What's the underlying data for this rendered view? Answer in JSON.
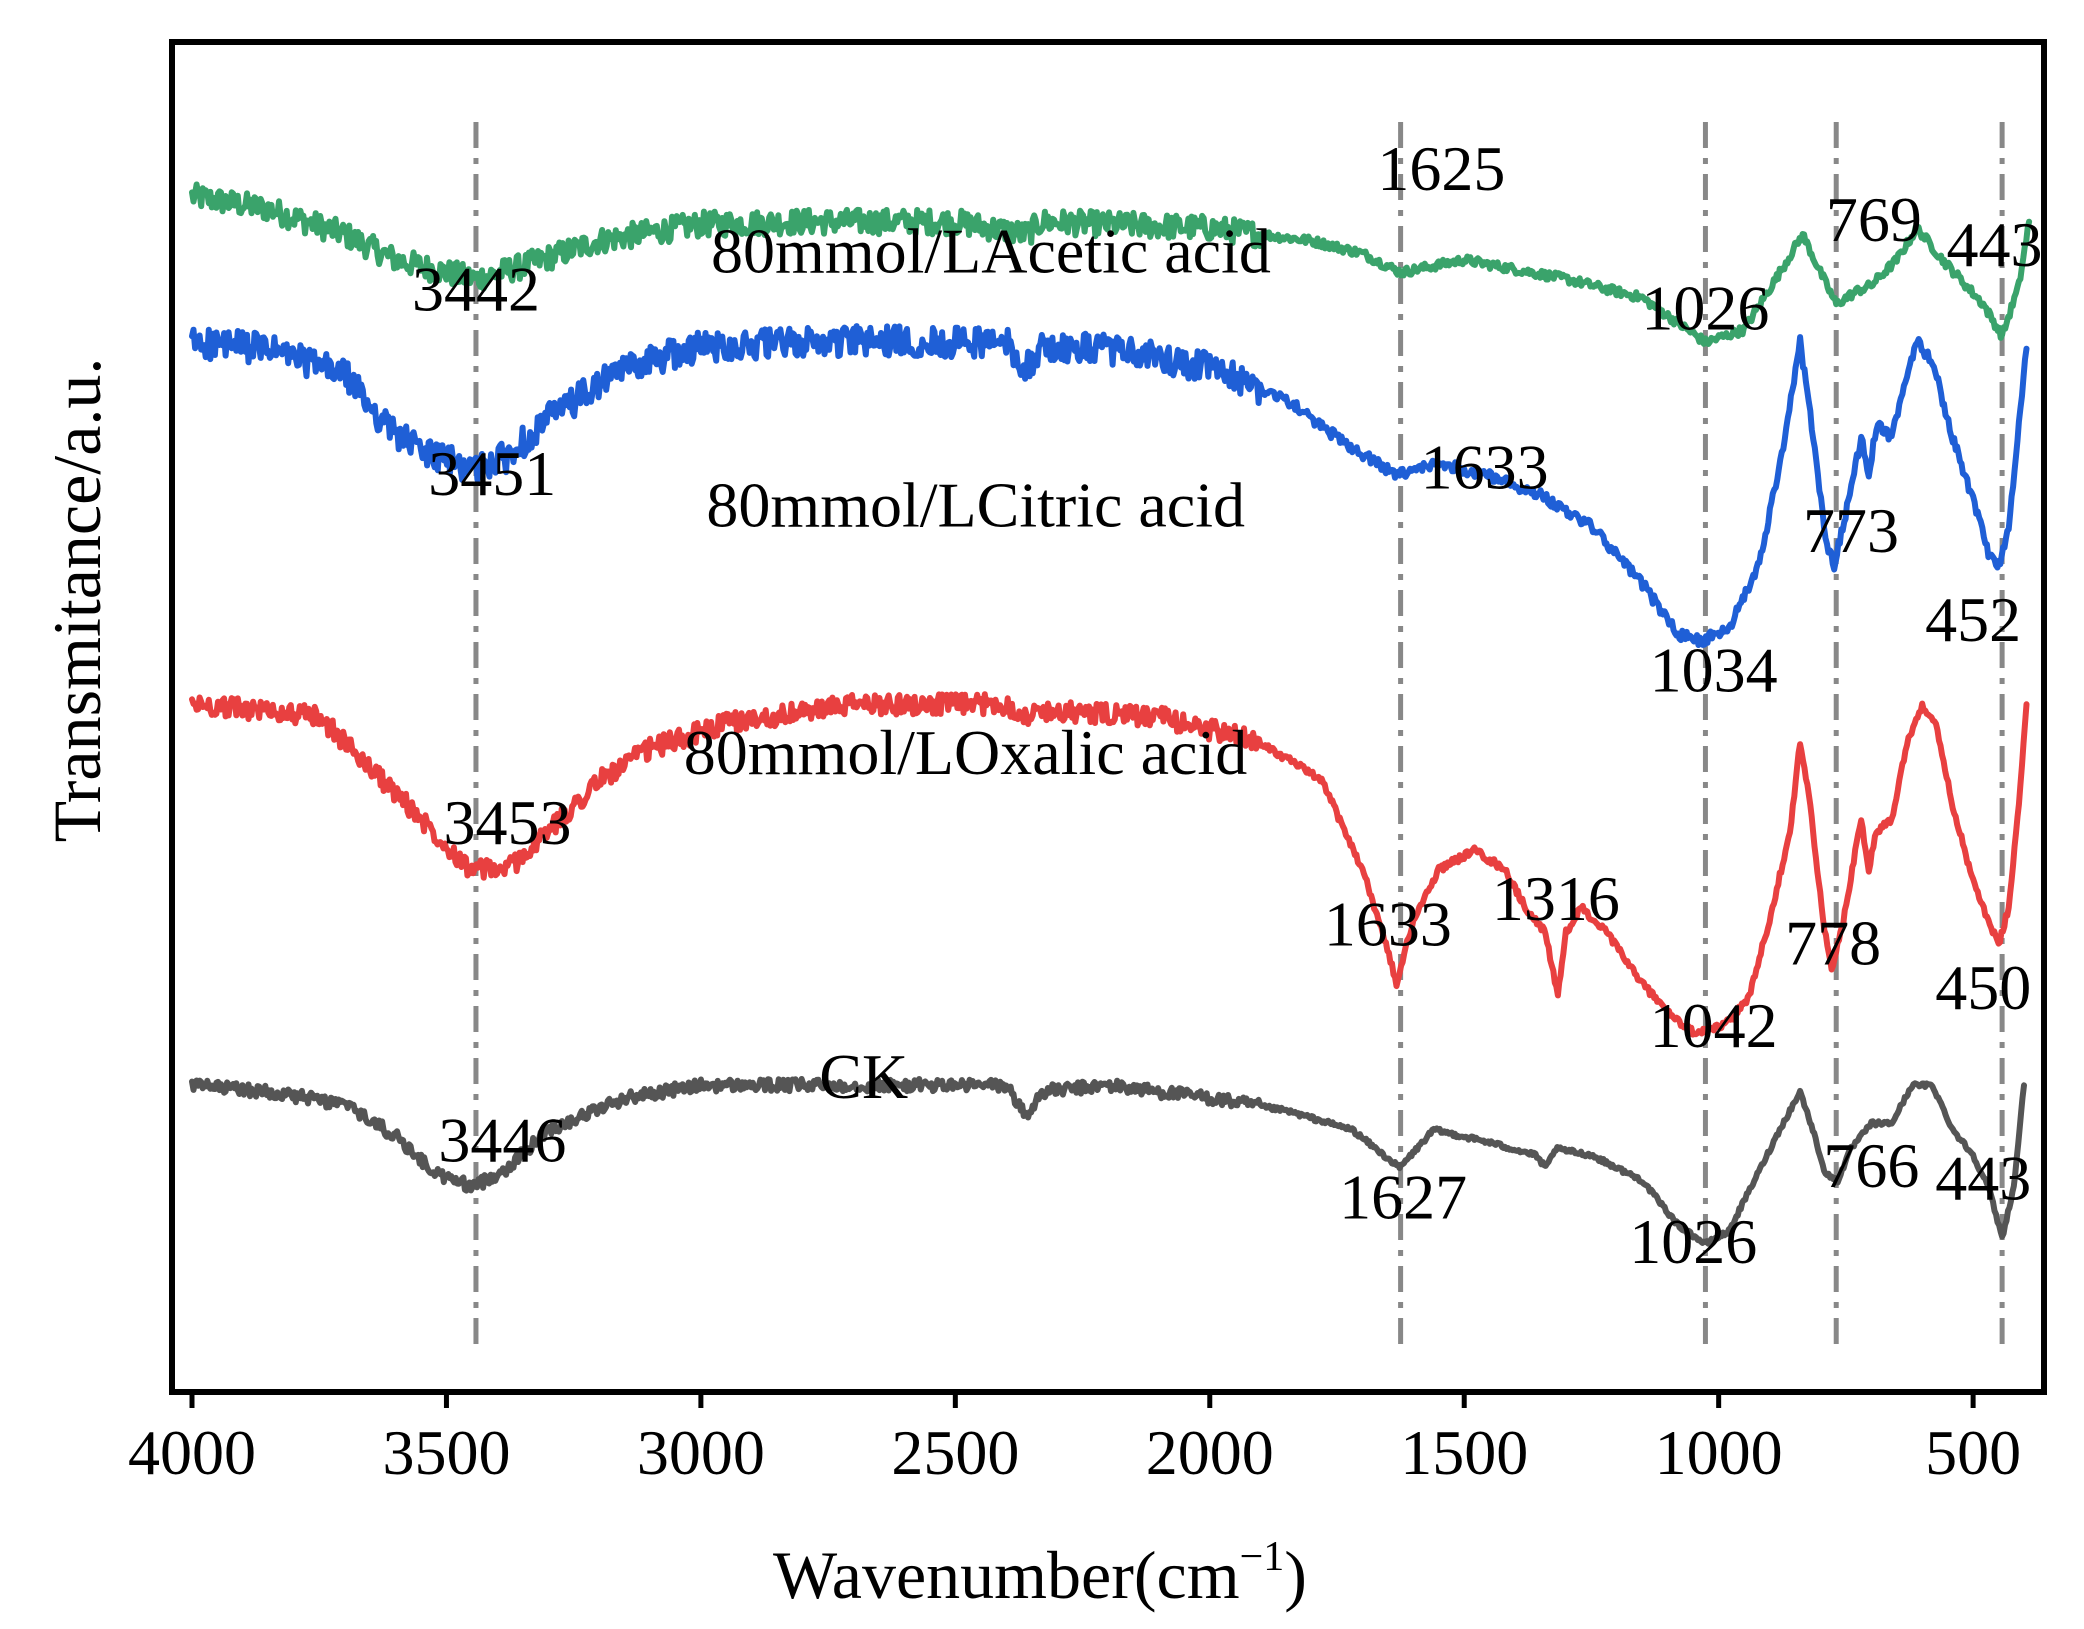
{
  "chart_data": {
    "type": "line",
    "xlabel_main": "Wavenumber(cm",
    "xlabel_sup": "−1",
    "xlabel_close": ")",
    "ylabel": "Transmitance/a.u.",
    "xlim": [
      4000,
      360
    ],
    "ylim": [
      0,
      100
    ],
    "xticks": [
      4000,
      3500,
      3000,
      2500,
      2000,
      1500,
      1000,
      500
    ],
    "x_tick_labels": [
      "4000",
      "3500",
      "3000",
      "2500",
      "2000",
      "1500",
      "1000",
      "500"
    ],
    "reference_lines": [
      3442,
      1625,
      1026,
      769,
      443
    ],
    "series": [
      {
        "name": "80mmol/LAcetic acid",
        "color": "#3aa36b",
        "noise": 2.0,
        "points": [
          [
            4000,
            91
          ],
          [
            3850,
            90
          ],
          [
            3700,
            88
          ],
          [
            3600,
            86
          ],
          [
            3500,
            85
          ],
          [
            3442,
            84.5
          ],
          [
            3350,
            85.5
          ],
          [
            3200,
            87.5
          ],
          [
            3000,
            88.8
          ],
          [
            2800,
            89
          ],
          [
            2500,
            89
          ],
          [
            2360,
            88
          ],
          [
            2330,
            89
          ],
          [
            2000,
            88.5
          ],
          [
            1800,
            87.5
          ],
          [
            1700,
            86.5
          ],
          [
            1625,
            85
          ],
          [
            1500,
            86
          ],
          [
            1300,
            84.5
          ],
          [
            1150,
            83
          ],
          [
            1026,
            79.5
          ],
          [
            950,
            80.5
          ],
          [
            880,
            85
          ],
          [
            835,
            88
          ],
          [
            800,
            85
          ],
          [
            769,
            82.5
          ],
          [
            730,
            83.5
          ],
          [
            700,
            84
          ],
          [
            650,
            86
          ],
          [
            610,
            88.5
          ],
          [
            560,
            86
          ],
          [
            480,
            82.5
          ],
          [
            443,
            80
          ],
          [
            410,
            84
          ],
          [
            390,
            89
          ]
        ]
      },
      {
        "name": "80mmol/LCitric acid",
        "color": "#1f5fd6",
        "noise": 2.4,
        "points": [
          [
            4000,
            79.5
          ],
          [
            3850,
            79
          ],
          [
            3700,
            77
          ],
          [
            3620,
            73
          ],
          [
            3550,
            71
          ],
          [
            3451,
            69.5
          ],
          [
            3380,
            70.5
          ],
          [
            3300,
            73.5
          ],
          [
            3150,
            77.5
          ],
          [
            3000,
            79.2
          ],
          [
            2700,
            79.6
          ],
          [
            2400,
            79.5
          ],
          [
            2360,
            77.5
          ],
          [
            2330,
            79
          ],
          [
            2200,
            79
          ],
          [
            2000,
            77.5
          ],
          [
            1850,
            75
          ],
          [
            1750,
            72
          ],
          [
            1633,
            69
          ],
          [
            1550,
            70
          ],
          [
            1450,
            69
          ],
          [
            1350,
            67.5
          ],
          [
            1250,
            65
          ],
          [
            1150,
            60.5
          ],
          [
            1080,
            56.5
          ],
          [
            1034,
            56
          ],
          [
            980,
            57
          ],
          [
            920,
            62
          ],
          [
            870,
            72
          ],
          [
            840,
            79.5
          ],
          [
            820,
            74
          ],
          [
            790,
            64
          ],
          [
            773,
            62
          ],
          [
            745,
            67
          ],
          [
            720,
            72
          ],
          [
            705,
            69
          ],
          [
            690,
            73
          ],
          [
            660,
            72
          ],
          [
            630,
            77
          ],
          [
            610,
            79.5
          ],
          [
            580,
            78
          ],
          [
            540,
            72
          ],
          [
            500,
            67
          ],
          [
            470,
            63
          ],
          [
            452,
            61.5
          ],
          [
            430,
            65
          ],
          [
            410,
            73
          ],
          [
            395,
            79
          ]
        ]
      },
      {
        "name": "80mmol/LOxalic acid",
        "color": "#e84040",
        "noise": 1.6,
        "points": [
          [
            4000,
            51
          ],
          [
            3850,
            50.5
          ],
          [
            3750,
            50
          ],
          [
            3650,
            46
          ],
          [
            3550,
            42
          ],
          [
            3453,
            38
          ],
          [
            3380,
            38
          ],
          [
            3300,
            41
          ],
          [
            3200,
            45
          ],
          [
            3100,
            47.5
          ],
          [
            2950,
            49.5
          ],
          [
            2700,
            51
          ],
          [
            2400,
            51
          ],
          [
            2360,
            50
          ],
          [
            2330,
            50.5
          ],
          [
            2100,
            50
          ],
          [
            1900,
            48
          ],
          [
            1780,
            45
          ],
          [
            1700,
            38
          ],
          [
            1660,
            33
          ],
          [
            1633,
            29
          ],
          [
            1600,
            34
          ],
          [
            1550,
            38
          ],
          [
            1480,
            39.5
          ],
          [
            1420,
            38
          ],
          [
            1380,
            35
          ],
          [
            1340,
            33
          ],
          [
            1316,
            28
          ],
          [
            1300,
            33
          ],
          [
            1270,
            35
          ],
          [
            1220,
            33
          ],
          [
            1150,
            29
          ],
          [
            1080,
            26
          ],
          [
            1042,
            25
          ],
          [
            980,
            26
          ],
          [
            940,
            28
          ],
          [
            900,
            34
          ],
          [
            860,
            41
          ],
          [
            840,
            48
          ],
          [
            820,
            43
          ],
          [
            795,
            34
          ],
          [
            778,
            30
          ],
          [
            755,
            34
          ],
          [
            720,
            42
          ],
          [
            705,
            38
          ],
          [
            690,
            41
          ],
          [
            660,
            42
          ],
          [
            630,
            48
          ],
          [
            600,
            51
          ],
          [
            570,
            49
          ],
          [
            540,
            43
          ],
          [
            500,
            37
          ],
          [
            470,
            34
          ],
          [
            450,
            32
          ],
          [
            430,
            35
          ],
          [
            410,
            43
          ],
          [
            395,
            51
          ]
        ]
      },
      {
        "name": "CK",
        "color": "#555555",
        "noise": 1.0,
        "points": [
          [
            4000,
            21
          ],
          [
            3850,
            20.5
          ],
          [
            3700,
            19.5
          ],
          [
            3600,
            17
          ],
          [
            3520,
            14
          ],
          [
            3446,
            13
          ],
          [
            3380,
            14.5
          ],
          [
            3300,
            17.5
          ],
          [
            3150,
            20
          ],
          [
            3000,
            21
          ],
          [
            2700,
            21
          ],
          [
            2400,
            21
          ],
          [
            2360,
            18.5
          ],
          [
            2330,
            20.5
          ],
          [
            2200,
            21
          ],
          [
            2000,
            20
          ],
          [
            1850,
            19
          ],
          [
            1720,
            17.5
          ],
          [
            1627,
            14.5
          ],
          [
            1560,
            17.5
          ],
          [
            1450,
            16.5
          ],
          [
            1360,
            15.5
          ],
          [
            1340,
            14.5
          ],
          [
            1320,
            16
          ],
          [
            1250,
            15.5
          ],
          [
            1150,
            13.5
          ],
          [
            1080,
            10
          ],
          [
            1026,
            8.5
          ],
          [
            980,
            9.5
          ],
          [
            930,
            13.5
          ],
          [
            880,
            17.5
          ],
          [
            840,
            20.5
          ],
          [
            815,
            17.5
          ],
          [
            790,
            14
          ],
          [
            766,
            13.5
          ],
          [
            740,
            16
          ],
          [
            720,
            17
          ],
          [
            700,
            18
          ],
          [
            660,
            18
          ],
          [
            620,
            21
          ],
          [
            580,
            21
          ],
          [
            540,
            17.5
          ],
          [
            500,
            15.5
          ],
          [
            470,
            13
          ],
          [
            443,
            9
          ],
          [
            420,
            13
          ],
          [
            400,
            21
          ]
        ]
      }
    ],
    "annotations": [
      {
        "text": "3442",
        "x": 3442,
        "y": 82,
        "anchor": "middle"
      },
      {
        "text": "1625",
        "x": 1545,
        "y": 91.5,
        "anchor": "middle"
      },
      {
        "text": "80mmol/LAcetic acid",
        "x": 2430,
        "y": 85,
        "anchor": "middle"
      },
      {
        "text": "1026",
        "x": 1026,
        "y": 80.5,
        "anchor": "middle"
      },
      {
        "text": "769",
        "x": 695,
        "y": 87.5,
        "anchor": "middle"
      },
      {
        "text": "443",
        "x": 458,
        "y": 85.5,
        "anchor": "middle"
      },
      {
        "text": "3451",
        "x": 3410,
        "y": 67.5,
        "anchor": "middle"
      },
      {
        "text": "80mmol/LCitric acid",
        "x": 2460,
        "y": 65,
        "anchor": "middle"
      },
      {
        "text": "1633",
        "x": 1460,
        "y": 68,
        "anchor": "middle"
      },
      {
        "text": "773",
        "x": 740,
        "y": 63,
        "anchor": "middle"
      },
      {
        "text": "452",
        "x": 500,
        "y": 56,
        "anchor": "middle"
      },
      {
        "text": "1034",
        "x": 1010,
        "y": 52,
        "anchor": "middle"
      },
      {
        "text": "80mmol/LOxalic acid",
        "x": 2480,
        "y": 45.5,
        "anchor": "middle"
      },
      {
        "text": "3453",
        "x": 3380,
        "y": 40,
        "anchor": "middle"
      },
      {
        "text": "1633",
        "x": 1650,
        "y": 32,
        "anchor": "middle"
      },
      {
        "text": "1316",
        "x": 1320,
        "y": 34,
        "anchor": "middle"
      },
      {
        "text": "778",
        "x": 775,
        "y": 30.5,
        "anchor": "middle"
      },
      {
        "text": "450",
        "x": 480,
        "y": 27,
        "anchor": "middle"
      },
      {
        "text": "1042",
        "x": 1010,
        "y": 24,
        "anchor": "middle"
      },
      {
        "text": "CK",
        "x": 2680,
        "y": 20,
        "anchor": "middle"
      },
      {
        "text": "3446",
        "x": 3390,
        "y": 15,
        "anchor": "middle"
      },
      {
        "text": "1627",
        "x": 1620,
        "y": 10.5,
        "anchor": "middle"
      },
      {
        "text": "766",
        "x": 700,
        "y": 13,
        "anchor": "middle"
      },
      {
        "text": "443",
        "x": 480,
        "y": 12,
        "anchor": "middle"
      },
      {
        "text": "1026",
        "x": 1050,
        "y": 7,
        "anchor": "middle"
      }
    ]
  }
}
